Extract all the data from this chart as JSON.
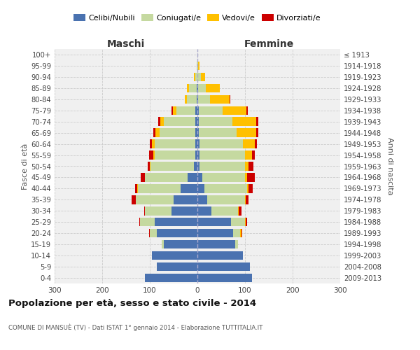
{
  "age_groups": [
    "0-4",
    "5-9",
    "10-14",
    "15-19",
    "20-24",
    "25-29",
    "30-34",
    "35-39",
    "40-44",
    "45-49",
    "50-54",
    "55-59",
    "60-64",
    "65-69",
    "70-74",
    "75-79",
    "80-84",
    "85-89",
    "90-94",
    "95-99",
    "100+"
  ],
  "birth_years": [
    "2009-2013",
    "2004-2008",
    "1999-2003",
    "1994-1998",
    "1989-1993",
    "1984-1988",
    "1979-1983",
    "1974-1978",
    "1969-1973",
    "1964-1968",
    "1959-1963",
    "1954-1958",
    "1949-1953",
    "1944-1948",
    "1939-1943",
    "1934-1938",
    "1929-1933",
    "1924-1928",
    "1919-1923",
    "1914-1918",
    "≤ 1913"
  ],
  "male": {
    "celibi": [
      110,
      85,
      95,
      70,
      85,
      90,
      55,
      50,
      35,
      20,
      8,
      5,
      5,
      5,
      5,
      4,
      2,
      2,
      0,
      0,
      0
    ],
    "coniugati": [
      0,
      0,
      0,
      5,
      15,
      30,
      55,
      80,
      90,
      90,
      90,
      85,
      85,
      75,
      65,
      40,
      20,
      15,
      5,
      1,
      0
    ],
    "vedovi": [
      0,
      0,
      0,
      0,
      0,
      0,
      0,
      0,
      1,
      1,
      2,
      3,
      5,
      8,
      8,
      8,
      5,
      5,
      2,
      0,
      0
    ],
    "divorziati": [
      0,
      0,
      0,
      0,
      1,
      2,
      2,
      8,
      5,
      8,
      5,
      8,
      5,
      5,
      5,
      2,
      0,
      0,
      0,
      0,
      0
    ]
  },
  "female": {
    "nubili": [
      115,
      110,
      95,
      80,
      75,
      70,
      30,
      20,
      15,
      10,
      5,
      5,
      5,
      3,
      3,
      3,
      2,
      2,
      0,
      0,
      0
    ],
    "coniugate": [
      0,
      0,
      0,
      5,
      15,
      30,
      55,
      80,
      90,
      90,
      95,
      95,
      90,
      80,
      70,
      50,
      25,
      15,
      8,
      2,
      0
    ],
    "vedove": [
      0,
      0,
      0,
      0,
      2,
      2,
      2,
      2,
      3,
      5,
      8,
      15,
      25,
      40,
      50,
      50,
      40,
      30,
      8,
      2,
      0
    ],
    "divorziate": [
      0,
      0,
      0,
      0,
      2,
      2,
      5,
      5,
      8,
      15,
      10,
      5,
      5,
      5,
      5,
      3,
      2,
      0,
      0,
      0,
      0
    ]
  },
  "color_celibi": "#4a72b0",
  "color_coniugati": "#c5d9a0",
  "color_vedovi": "#ffc000",
  "color_divorziati": "#cc0000",
  "title": "Popolazione per età, sesso e stato civile - 2014",
  "subtitle": "COMUNE DI MANSUÈ (TV) - Dati ISTAT 1° gennaio 2014 - Elaborazione TUTTITALIA.IT",
  "ylabel_left": "Fasce di età",
  "ylabel_right": "Anni di nascita",
  "xlabel_left": "Maschi",
  "xlabel_right": "Femmine",
  "xlim": 300,
  "bg_color": "#f0f0f0"
}
